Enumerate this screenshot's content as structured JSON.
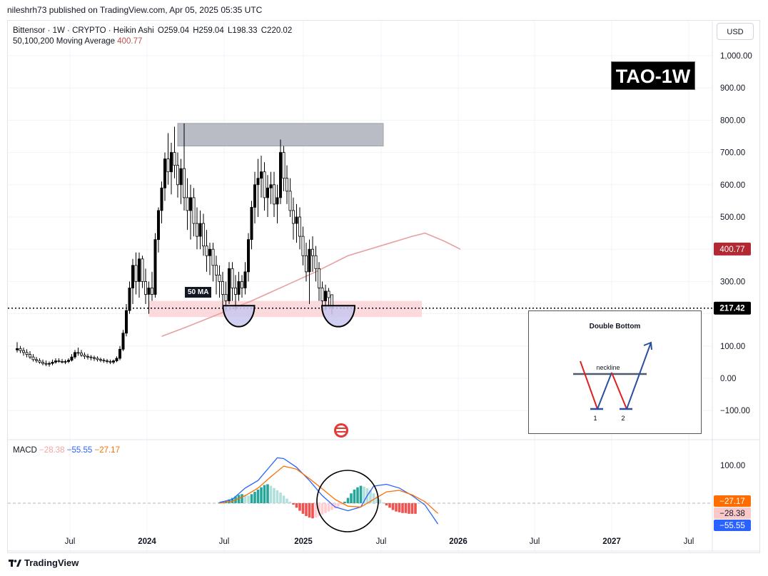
{
  "header": {
    "publisher_line": "nileshrh73 published on TradingView.com, Apr 05, 2025 05:35 UTC"
  },
  "legend": {
    "symbol_line": "Bittensor · 1W · CRYPTO · Heikin Ashi",
    "open_label": "O",
    "open_value": "259.04",
    "high_label": "H",
    "high_value": "259.04",
    "low_label": "L",
    "low_value": "198.33",
    "close_label": "C",
    "close_value": "220.02",
    "ma_label": "50,100,200 Moving Average",
    "ma_value": "400.77"
  },
  "currency_button": "USD",
  "tag_box": "TAO-1W",
  "ma_label_box": "50 MA",
  "price_axis": {
    "ticks": [
      {
        "value": 1000,
        "label": "1,000.00"
      },
      {
        "value": 900,
        "label": "900.00"
      },
      {
        "value": 800,
        "label": "800.00"
      },
      {
        "value": 700,
        "label": "700.00"
      },
      {
        "value": 600,
        "label": "600.00"
      },
      {
        "value": 500,
        "label": "500.00"
      },
      {
        "value": 300,
        "label": "300.00"
      },
      {
        "value": 100,
        "label": "100.00"
      },
      {
        "value": 0,
        "label": "0.00"
      },
      {
        "value": -100,
        "label": "−100.00"
      }
    ],
    "ma_badge": {
      "value": 400.77,
      "label": "400.77",
      "color": "#b22833"
    },
    "price_badge": {
      "value": 217.42,
      "label": "217.42",
      "color": "#000000"
    }
  },
  "macd": {
    "legend_label": "MACD",
    "histogram_value": "−28.38",
    "macd_value": "−55.55",
    "signal_value": "−27.17",
    "axis_tick": "100.00",
    "badges": [
      {
        "label": "−27.17",
        "color": "#ff6d00",
        "text_color": "#ffffff"
      },
      {
        "label": "−28.38",
        "color": "#fbc9c9",
        "text_color": "#131722"
      },
      {
        "label": "−55.55",
        "color": "#2962ff",
        "text_color": "#ffffff"
      }
    ]
  },
  "time_axis": [
    "Jul",
    "2024",
    "Jul",
    "2025",
    "Jul",
    "2026",
    "Jul",
    "2027",
    "Jul"
  ],
  "inset": {
    "title": "Double Bottom",
    "neckline_label": "neckline",
    "bottom_labels": [
      "1",
      "2"
    ]
  },
  "footer": {
    "brand": "TradingView"
  },
  "colors": {
    "up_candle": "#000000",
    "down_candle": "#ffffff",
    "ma_line": "#e8a0a0",
    "resistance_zone": "#b2b5be",
    "support_zone": "#fbd5d8",
    "bottom_shape": "#c9c7ef",
    "macd_line": "#2962ff",
    "signal_line": "#ff6d00",
    "hist_green": "#26a69a",
    "hist_red": "#ef5350"
  },
  "chart_data": {
    "type": "candlestick",
    "title": "Bittensor · 1W · CRYPTO · Heikin Ashi",
    "ylim": [
      -160,
      1060
    ],
    "current_price": 217.42,
    "candles": [
      {
        "o": 88,
        "h": 112,
        "l": 80,
        "c": 92
      },
      {
        "o": 92,
        "h": 100,
        "l": 78,
        "c": 86
      },
      {
        "o": 86,
        "h": 95,
        "l": 70,
        "c": 80
      },
      {
        "o": 80,
        "h": 90,
        "l": 65,
        "c": 74
      },
      {
        "o": 74,
        "h": 84,
        "l": 60,
        "c": 66
      },
      {
        "o": 66,
        "h": 75,
        "l": 52,
        "c": 58
      },
      {
        "o": 58,
        "h": 66,
        "l": 48,
        "c": 55
      },
      {
        "o": 55,
        "h": 62,
        "l": 45,
        "c": 50
      },
      {
        "o": 50,
        "h": 58,
        "l": 40,
        "c": 46
      },
      {
        "o": 46,
        "h": 55,
        "l": 38,
        "c": 44
      },
      {
        "o": 44,
        "h": 52,
        "l": 36,
        "c": 46
      },
      {
        "o": 46,
        "h": 58,
        "l": 40,
        "c": 50
      },
      {
        "o": 50,
        "h": 62,
        "l": 45,
        "c": 54
      },
      {
        "o": 54,
        "h": 62,
        "l": 48,
        "c": 52
      },
      {
        "o": 52,
        "h": 60,
        "l": 46,
        "c": 50
      },
      {
        "o": 50,
        "h": 58,
        "l": 44,
        "c": 52
      },
      {
        "o": 52,
        "h": 62,
        "l": 47,
        "c": 56
      },
      {
        "o": 56,
        "h": 75,
        "l": 52,
        "c": 66
      },
      {
        "o": 66,
        "h": 88,
        "l": 60,
        "c": 80
      },
      {
        "o": 80,
        "h": 95,
        "l": 70,
        "c": 78
      },
      {
        "o": 78,
        "h": 88,
        "l": 66,
        "c": 72
      },
      {
        "o": 72,
        "h": 80,
        "l": 60,
        "c": 68
      },
      {
        "o": 68,
        "h": 76,
        "l": 58,
        "c": 66
      },
      {
        "o": 66,
        "h": 72,
        "l": 56,
        "c": 64
      },
      {
        "o": 64,
        "h": 70,
        "l": 54,
        "c": 62
      },
      {
        "o": 62,
        "h": 68,
        "l": 52,
        "c": 58
      },
      {
        "o": 58,
        "h": 64,
        "l": 50,
        "c": 56
      },
      {
        "o": 56,
        "h": 62,
        "l": 48,
        "c": 54
      },
      {
        "o": 54,
        "h": 60,
        "l": 46,
        "c": 52
      },
      {
        "o": 52,
        "h": 58,
        "l": 44,
        "c": 50
      },
      {
        "o": 50,
        "h": 58,
        "l": 44,
        "c": 54
      },
      {
        "o": 54,
        "h": 68,
        "l": 50,
        "c": 62
      },
      {
        "o": 62,
        "h": 100,
        "l": 56,
        "c": 90
      },
      {
        "o": 90,
        "h": 150,
        "l": 84,
        "c": 140
      },
      {
        "o": 140,
        "h": 230,
        "l": 130,
        "c": 210
      },
      {
        "o": 210,
        "h": 300,
        "l": 200,
        "c": 280
      },
      {
        "o": 280,
        "h": 370,
        "l": 230,
        "c": 350
      },
      {
        "o": 350,
        "h": 390,
        "l": 260,
        "c": 300
      },
      {
        "o": 300,
        "h": 390,
        "l": 250,
        "c": 370
      },
      {
        "o": 370,
        "h": 380,
        "l": 280,
        "c": 300
      },
      {
        "o": 300,
        "h": 340,
        "l": 230,
        "c": 260
      },
      {
        "o": 260,
        "h": 300,
        "l": 200,
        "c": 280
      },
      {
        "o": 280,
        "h": 330,
        "l": 240,
        "c": 260
      },
      {
        "o": 260,
        "h": 450,
        "l": 250,
        "c": 430
      },
      {
        "o": 430,
        "h": 530,
        "l": 390,
        "c": 520
      },
      {
        "o": 520,
        "h": 610,
        "l": 480,
        "c": 590
      },
      {
        "o": 590,
        "h": 700,
        "l": 550,
        "c": 680
      },
      {
        "o": 680,
        "h": 760,
        "l": 600,
        "c": 640
      },
      {
        "o": 640,
        "h": 730,
        "l": 570,
        "c": 700
      },
      {
        "o": 700,
        "h": 780,
        "l": 620,
        "c": 660
      },
      {
        "o": 660,
        "h": 700,
        "l": 560,
        "c": 600
      },
      {
        "o": 600,
        "h": 680,
        "l": 540,
        "c": 650
      },
      {
        "o": 650,
        "h": 790,
        "l": 520,
        "c": 560
      },
      {
        "o": 560,
        "h": 620,
        "l": 460,
        "c": 520
      },
      {
        "o": 520,
        "h": 600,
        "l": 430,
        "c": 560
      },
      {
        "o": 560,
        "h": 590,
        "l": 440,
        "c": 480
      },
      {
        "o": 480,
        "h": 530,
        "l": 400,
        "c": 440
      },
      {
        "o": 440,
        "h": 520,
        "l": 400,
        "c": 480
      },
      {
        "o": 480,
        "h": 510,
        "l": 380,
        "c": 410
      },
      {
        "o": 410,
        "h": 460,
        "l": 330,
        "c": 380
      },
      {
        "o": 380,
        "h": 420,
        "l": 320,
        "c": 400
      },
      {
        "o": 400,
        "h": 420,
        "l": 300,
        "c": 350
      },
      {
        "o": 350,
        "h": 380,
        "l": 260,
        "c": 320
      },
      {
        "o": 320,
        "h": 350,
        "l": 250,
        "c": 300
      },
      {
        "o": 300,
        "h": 330,
        "l": 220,
        "c": 260
      },
      {
        "o": 260,
        "h": 300,
        "l": 210,
        "c": 240
      },
      {
        "o": 240,
        "h": 360,
        "l": 230,
        "c": 340
      },
      {
        "o": 340,
        "h": 360,
        "l": 240,
        "c": 280
      },
      {
        "o": 280,
        "h": 320,
        "l": 210,
        "c": 260
      },
      {
        "o": 260,
        "h": 330,
        "l": 240,
        "c": 300
      },
      {
        "o": 300,
        "h": 320,
        "l": 250,
        "c": 280
      },
      {
        "o": 280,
        "h": 360,
        "l": 260,
        "c": 330
      },
      {
        "o": 330,
        "h": 450,
        "l": 300,
        "c": 430
      },
      {
        "o": 430,
        "h": 550,
        "l": 400,
        "c": 530
      },
      {
        "o": 530,
        "h": 640,
        "l": 480,
        "c": 600
      },
      {
        "o": 600,
        "h": 680,
        "l": 500,
        "c": 620
      },
      {
        "o": 620,
        "h": 690,
        "l": 560,
        "c": 640
      },
      {
        "o": 640,
        "h": 670,
        "l": 520,
        "c": 560
      },
      {
        "o": 560,
        "h": 630,
        "l": 500,
        "c": 590
      },
      {
        "o": 590,
        "h": 640,
        "l": 540,
        "c": 600
      },
      {
        "o": 600,
        "h": 640,
        "l": 500,
        "c": 540
      },
      {
        "o": 540,
        "h": 600,
        "l": 480,
        "c": 560
      },
      {
        "o": 560,
        "h": 740,
        "l": 540,
        "c": 700
      },
      {
        "o": 700,
        "h": 720,
        "l": 580,
        "c": 620
      },
      {
        "o": 620,
        "h": 660,
        "l": 540,
        "c": 580
      },
      {
        "o": 580,
        "h": 620,
        "l": 500,
        "c": 520
      },
      {
        "o": 520,
        "h": 560,
        "l": 430,
        "c": 480
      },
      {
        "o": 480,
        "h": 540,
        "l": 420,
        "c": 500
      },
      {
        "o": 500,
        "h": 530,
        "l": 400,
        "c": 440
      },
      {
        "o": 440,
        "h": 470,
        "l": 350,
        "c": 380
      },
      {
        "o": 380,
        "h": 420,
        "l": 300,
        "c": 330
      },
      {
        "o": 330,
        "h": 430,
        "l": 230,
        "c": 400
      },
      {
        "o": 400,
        "h": 440,
        "l": 330,
        "c": 380
      },
      {
        "o": 380,
        "h": 410,
        "l": 300,
        "c": 340
      },
      {
        "o": 340,
        "h": 360,
        "l": 240,
        "c": 280
      },
      {
        "o": 280,
        "h": 300,
        "l": 220,
        "c": 240
      },
      {
        "o": 240,
        "h": 290,
        "l": 210,
        "c": 270
      },
      {
        "o": 270,
        "h": 280,
        "l": 220,
        "c": 250
      },
      {
        "o": 259,
        "h": 259,
        "l": 198,
        "c": 220
      }
    ],
    "moving_average_50": [
      [
        0,
        130
      ],
      [
        8,
        160
      ],
      [
        18,
        200
      ],
      [
        28,
        240
      ],
      [
        38,
        285
      ],
      [
        48,
        330
      ],
      [
        58,
        380
      ],
      [
        68,
        410
      ],
      [
        78,
        440
      ],
      [
        82,
        450
      ],
      [
        88,
        425
      ],
      [
        93,
        400
      ]
    ],
    "resistance_zone": {
      "from_bar": 50,
      "to_bar": 114,
      "top": 790,
      "bottom": 720
    },
    "support_zone": {
      "from_bar": 41,
      "to_bar": 126,
      "top": 240,
      "bottom": 190
    },
    "macd": {
      "ylim": [
        -100,
        160
      ],
      "histogram": [
        0,
        0,
        0,
        0,
        0,
        0,
        0,
        0,
        0,
        0,
        0,
        0,
        0,
        0,
        0,
        0,
        0,
        0,
        0,
        0,
        0,
        0,
        0,
        0,
        0,
        0,
        0,
        0,
        0,
        0,
        0,
        0,
        2,
        4,
        6,
        10,
        14,
        18,
        22,
        24,
        22,
        20,
        24,
        30,
        36,
        42,
        48,
        50,
        46,
        40,
        34,
        28,
        20,
        12,
        4,
        -4,
        -12,
        -20,
        -28,
        -34,
        -38,
        -40,
        -38,
        -34,
        -30,
        -26,
        -22,
        -18,
        -14,
        -10,
        -4,
        4,
        14,
        26,
        36,
        42,
        46,
        44,
        40,
        34,
        26,
        18,
        10,
        2,
        -6,
        -12,
        -18,
        -22,
        -24,
        -26,
        -26,
        -28,
        -28,
        -28
      ],
      "macd_line": [
        [
          32,
          2
        ],
        [
          36,
          10
        ],
        [
          40,
          40
        ],
        [
          44,
          60
        ],
        [
          48,
          100
        ],
        [
          50,
          120
        ],
        [
          52,
          118
        ],
        [
          56,
          95
        ],
        [
          60,
          60
        ],
        [
          64,
          20
        ],
        [
          68,
          -10
        ],
        [
          72,
          -20
        ],
        [
          76,
          -10
        ],
        [
          78,
          20
        ],
        [
          80,
          45
        ],
        [
          84,
          50
        ],
        [
          88,
          40
        ],
        [
          92,
          20
        ],
        [
          96,
          -5
        ],
        [
          98,
          -30
        ],
        [
          100,
          -55
        ]
      ],
      "signal_line": [
        [
          32,
          0
        ],
        [
          36,
          5
        ],
        [
          40,
          20
        ],
        [
          44,
          40
        ],
        [
          48,
          70
        ],
        [
          52,
          98
        ],
        [
          56,
          90
        ],
        [
          60,
          65
        ],
        [
          64,
          38
        ],
        [
          68,
          10
        ],
        [
          72,
          -8
        ],
        [
          76,
          -10
        ],
        [
          80,
          10
        ],
        [
          84,
          30
        ],
        [
          88,
          34
        ],
        [
          92,
          22
        ],
        [
          96,
          4
        ],
        [
          100,
          -27
        ]
      ]
    }
  }
}
